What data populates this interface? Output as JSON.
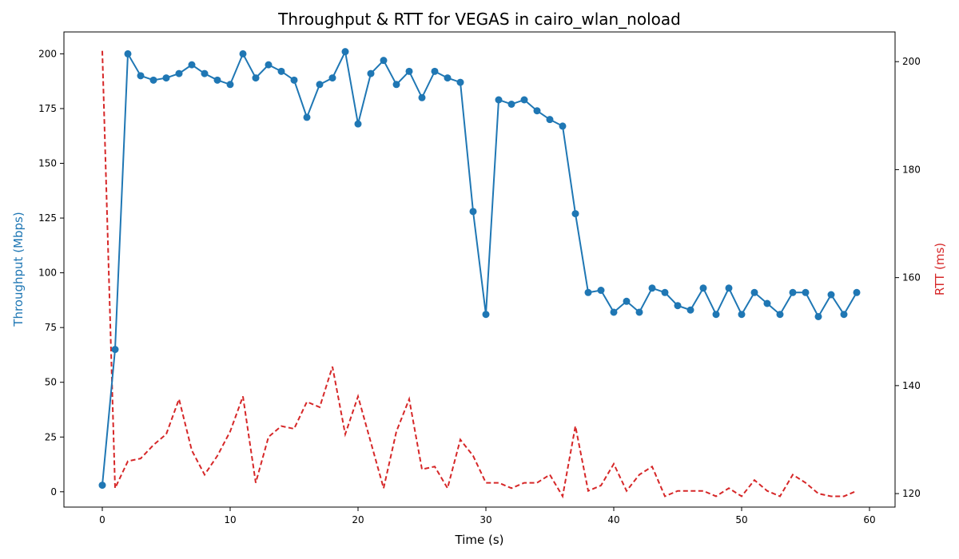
{
  "chart_data": {
    "type": "line",
    "title": "Throughput & RTT for VEGAS in cairo_wlan_noload",
    "xlabel": "Time (s)",
    "ylabel_left": "Throughput (Mbps)",
    "ylabel_right": "RTT (ms)",
    "xlim": [
      -3,
      62
    ],
    "ylim_left": [
      -7,
      210
    ],
    "ylim_right": [
      117.5,
      205.5
    ],
    "x_ticks": [
      0,
      10,
      20,
      30,
      40,
      50,
      60
    ],
    "y_ticks_left": [
      0,
      25,
      50,
      75,
      100,
      125,
      150,
      175,
      200
    ],
    "y_ticks_right": [
      120,
      140,
      160,
      180,
      200
    ],
    "grid": false,
    "colors": {
      "throughput": "#1f77b4",
      "rtt": "#d62728"
    },
    "series": [
      {
        "axis": "left",
        "style": "solid-markers",
        "x": [
          0,
          1,
          2,
          3,
          4,
          5,
          6,
          7,
          8,
          9,
          10,
          11,
          12,
          13,
          14,
          15,
          16,
          17,
          18,
          19,
          20,
          21,
          22,
          23,
          24,
          25,
          26,
          27,
          28,
          29,
          30,
          31,
          32,
          33,
          34,
          35,
          36,
          37,
          38,
          39,
          40,
          41,
          42,
          43,
          44,
          45,
          46,
          47,
          48,
          49,
          50,
          51,
          52,
          53,
          54,
          55,
          56,
          57,
          58,
          59
        ],
        "values": [
          3,
          65,
          200,
          190,
          188,
          189,
          191,
          195,
          191,
          188,
          186,
          200,
          189,
          195,
          192,
          188,
          171,
          186,
          189,
          201,
          168,
          191,
          197,
          186,
          192,
          180,
          192,
          189,
          187,
          128,
          81,
          179,
          177,
          179,
          174,
          170,
          167,
          127,
          91,
          92,
          82,
          87,
          82,
          93,
          91,
          85,
          83,
          93,
          81,
          93,
          81,
          91,
          86,
          81,
          91,
          91,
          80,
          90,
          81,
          91
        ]
      },
      {
        "axis": "right",
        "style": "dashed",
        "x": [
          0,
          1,
          2,
          3,
          4,
          5,
          6,
          7,
          8,
          9,
          10,
          11,
          12,
          13,
          14,
          15,
          16,
          17,
          18,
          19,
          20,
          21,
          22,
          23,
          24,
          25,
          26,
          27,
          28,
          29,
          30,
          31,
          32,
          33,
          34,
          35,
          36,
          37,
          38,
          39,
          40,
          41,
          42,
          43,
          44,
          45,
          46,
          47,
          48,
          49,
          50,
          51,
          52,
          53,
          54,
          55,
          56,
          57,
          58,
          59
        ],
        "values": [
          202,
          121,
          126,
          126.5,
          129,
          131,
          137.5,
          128,
          123.5,
          127,
          131.5,
          138,
          122,
          130.5,
          132.5,
          132,
          137,
          136,
          143.5,
          131,
          138,
          129.5,
          121,
          131.5,
          137.5,
          124.5,
          125,
          121,
          130,
          127,
          122,
          122,
          121,
          122,
          122,
          123.5,
          119.5,
          132.5,
          120.5,
          121.5,
          125.5,
          120.5,
          123.5,
          125,
          119.5,
          120.5,
          120.5,
          120.5,
          119.5,
          121,
          119.5,
          122.5,
          120.5,
          119.5,
          123.5,
          122,
          120,
          119.5,
          119.5,
          120.5
        ]
      }
    ]
  }
}
